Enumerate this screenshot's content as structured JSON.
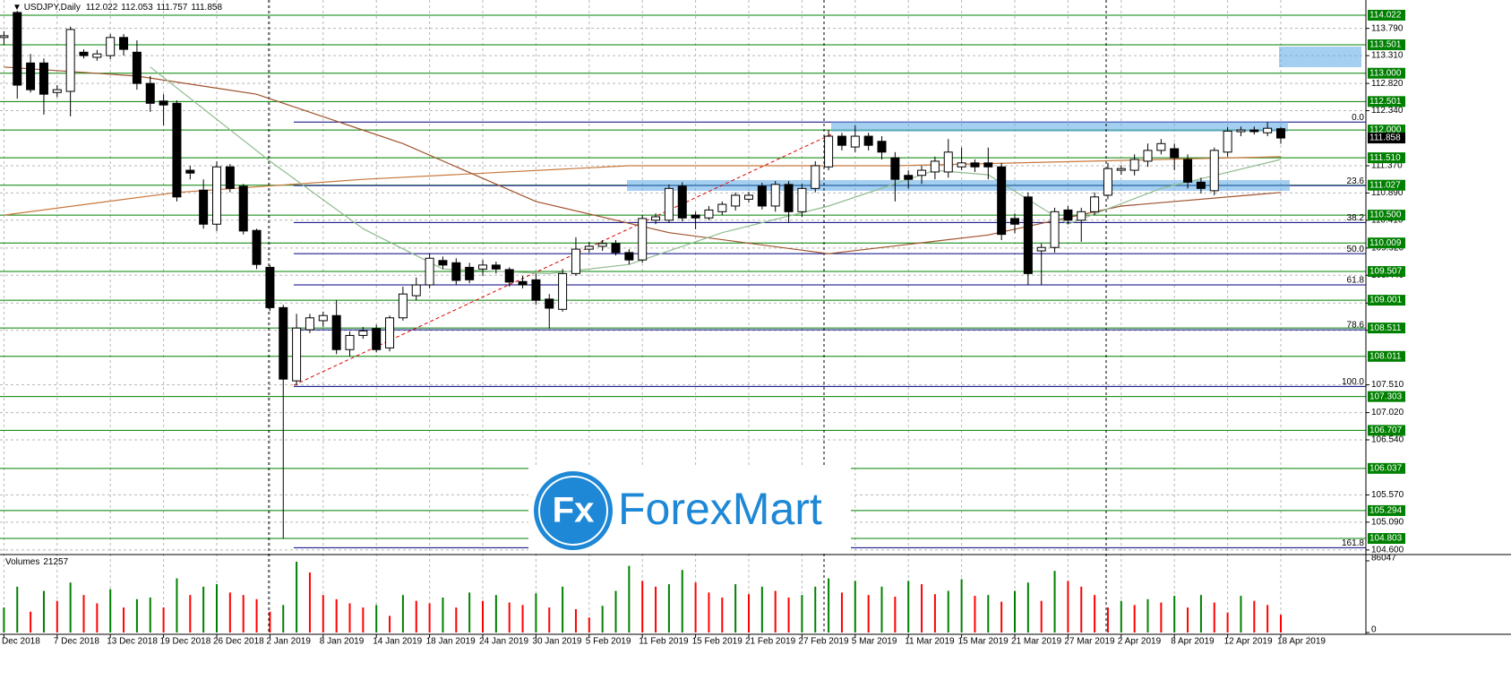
{
  "watermark": {
    "icon": "Fx",
    "text": "ForexMart"
  },
  "chart_data": [
    {
      "type": "candlestick",
      "title": "USDJPY,Daily",
      "categories": [
        "Dec 2018",
        null,
        null,
        null,
        "7 Dec 2018",
        null,
        null,
        null,
        "13 Dec 2018",
        null,
        null,
        null,
        "19 Dec 2018",
        null,
        null,
        null,
        "26 Dec 2018",
        null,
        null,
        null,
        "2 Jan 2019",
        null,
        null,
        null,
        "8 Jan 2019",
        null,
        null,
        null,
        "14 Jan 2019",
        null,
        null,
        null,
        "18 Jan 2019",
        null,
        null,
        null,
        "24 Jan 2019",
        null,
        null,
        null,
        "30 Jan 2019",
        null,
        null,
        null,
        "5 Feb 2019",
        null,
        null,
        null,
        "11 Feb 2019",
        null,
        null,
        null,
        "15 Feb 2019",
        null,
        null,
        null,
        "21 Feb 2019",
        null,
        null,
        null,
        "27 Feb 2019",
        null,
        null,
        null,
        "5 Mar 2019",
        null,
        null,
        null,
        "11 Mar 2019",
        null,
        null,
        null,
        "15 Mar 2019",
        null,
        null,
        null,
        "21 Mar 2019",
        null,
        null,
        null,
        "27 Mar 2019",
        null,
        null,
        null,
        "2 Apr 2019",
        null,
        null,
        null,
        "8 Apr 2019",
        null,
        null,
        null,
        "12 Apr 2019",
        null,
        null,
        null,
        "18 Apr 2019"
      ],
      "open": [
        113.63,
        114.07,
        113.18,
        113.18,
        112.66,
        112.68,
        113.37,
        113.28,
        113.31,
        113.63,
        113.37,
        112.82,
        112.51,
        112.47,
        111.29,
        110.94,
        110.34,
        111.35,
        111.01,
        110.23,
        109.58,
        108.87,
        107.58,
        108.48,
        108.64,
        108.73,
        108.13,
        108.38,
        108.5,
        108.16,
        108.69,
        109.08,
        109.27,
        109.7,
        109.66,
        109.58,
        109.55,
        109.62,
        109.54,
        109.33,
        109.36,
        109.02,
        108.84,
        109.47,
        109.9,
        109.95,
        110.0,
        109.84,
        109.71,
        110.41,
        110.41,
        111.01,
        110.5,
        110.45,
        110.56,
        110.66,
        110.78,
        111.01,
        110.66,
        111.04,
        110.56,
        110.97,
        111.35,
        111.89,
        111.7,
        111.89,
        111.8,
        111.51,
        111.2,
        111.2,
        111.26,
        111.26,
        111.35,
        111.42,
        111.42,
        111.35,
        110.44,
        110.82,
        109.87,
        109.93,
        110.59,
        110.41,
        110.56,
        110.85,
        111.29,
        111.29,
        111.45,
        111.64,
        111.67,
        111.48,
        111.08,
        110.93,
        111.61,
        111.97,
        112.0,
        111.95,
        112.022
      ],
      "high": [
        113.74,
        114.1,
        113.34,
        113.26,
        112.79,
        113.82,
        113.42,
        113.41,
        113.69,
        113.69,
        113.58,
        112.95,
        112.63,
        112.52,
        111.37,
        111.13,
        111.45,
        111.4,
        111.05,
        110.26,
        109.62,
        108.92,
        108.76,
        108.76,
        108.8,
        109.0,
        108.45,
        108.53,
        108.57,
        108.73,
        109.24,
        109.4,
        109.82,
        109.77,
        109.74,
        109.66,
        109.71,
        109.68,
        109.58,
        109.43,
        109.47,
        109.11,
        109.55,
        110.11,
        110.03,
        110.06,
        110.06,
        109.9,
        110.5,
        110.53,
        111.04,
        111.08,
        110.56,
        110.66,
        110.74,
        110.9,
        110.91,
        111.07,
        111.1,
        111.1,
        111.05,
        111.45,
        112.0,
        111.95,
        112.08,
        111.95,
        111.89,
        111.61,
        111.29,
        111.37,
        111.53,
        111.84,
        111.69,
        111.48,
        111.69,
        111.42,
        110.53,
        110.9,
        110.0,
        110.63,
        110.66,
        110.63,
        110.9,
        111.42,
        111.38,
        111.57,
        111.76,
        111.84,
        111.76,
        111.57,
        111.16,
        111.69,
        112.05,
        112.06,
        112.06,
        112.14,
        112.053
      ],
      "low": [
        113.5,
        112.55,
        112.66,
        112.27,
        112.58,
        112.24,
        113.26,
        113.22,
        113.25,
        113.31,
        112.71,
        112.32,
        112.08,
        110.74,
        111.13,
        110.26,
        110.22,
        110.9,
        110.16,
        109.55,
        108.81,
        104.8,
        107.5,
        108.42,
        108.53,
        108.05,
        108.01,
        108.32,
        108.08,
        108.1,
        108.64,
        109.0,
        109.21,
        109.55,
        109.27,
        109.3,
        109.43,
        109.47,
        109.24,
        109.21,
        108.92,
        108.5,
        108.8,
        109.43,
        109.84,
        109.87,
        109.79,
        109.63,
        109.66,
        110.34,
        110.36,
        110.39,
        110.25,
        110.41,
        110.5,
        110.58,
        110.72,
        110.6,
        110.56,
        110.37,
        110.47,
        110.9,
        111.29,
        111.64,
        111.61,
        111.64,
        111.48,
        110.74,
        110.97,
        111.05,
        111.13,
        111.16,
        111.29,
        111.26,
        111.13,
        110.06,
        110.18,
        109.27,
        109.27,
        109.84,
        110.34,
        110.03,
        110.5,
        110.78,
        111.21,
        111.2,
        111.35,
        111.57,
        111.29,
        110.97,
        110.88,
        110.85,
        111.53,
        111.89,
        111.92,
        111.89,
        111.757
      ],
      "close": [
        113.66,
        112.79,
        112.71,
        112.63,
        112.71,
        113.77,
        113.31,
        113.34,
        113.63,
        113.42,
        112.82,
        112.47,
        112.44,
        110.82,
        111.24,
        110.34,
        111.35,
        110.97,
        110.22,
        109.63,
        108.87,
        107.61,
        108.51,
        108.69,
        108.73,
        108.13,
        108.38,
        108.46,
        108.13,
        108.69,
        109.11,
        109.27,
        109.74,
        109.62,
        109.35,
        109.36,
        109.62,
        109.55,
        109.32,
        109.27,
        109.0,
        108.86,
        109.47,
        109.9,
        109.95,
        110.0,
        109.84,
        109.71,
        110.44,
        110.47,
        110.97,
        110.45,
        110.45,
        110.59,
        110.69,
        110.85,
        110.85,
        110.66,
        111.04,
        110.56,
        110.97,
        111.37,
        111.89,
        111.73,
        111.89,
        111.73,
        111.61,
        111.13,
        111.13,
        111.29,
        111.45,
        111.61,
        111.42,
        111.35,
        111.35,
        110.16,
        110.34,
        109.47,
        109.93,
        110.56,
        110.41,
        110.56,
        110.82,
        111.32,
        111.32,
        111.48,
        111.64,
        111.76,
        111.51,
        111.08,
        110.97,
        111.64,
        111.98,
        112.0,
        111.97,
        112.03,
        111.858
      ],
      "up_color": "#ffffff",
      "down_color": "#000000",
      "ylim": [
        104.535,
        114.29
      ],
      "yticks": [
        {
          "value": 113.79,
          "label": "113.790"
        },
        {
          "value": 113.31,
          "label": "113.310"
        },
        {
          "value": 112.82,
          "label": "112.820"
        },
        {
          "value": 112.34,
          "label": "112.340"
        },
        {
          "value": 111.37,
          "label": "111.370"
        },
        {
          "value": 110.89,
          "label": "110.890"
        },
        {
          "value": 110.41,
          "label": "110.410"
        },
        {
          "value": 109.92,
          "label": "109.920"
        },
        {
          "value": 109.44,
          "label": "109.440"
        },
        {
          "value": 108.95,
          "label": "108.950"
        },
        {
          "value": 108.47,
          "label": "108.470"
        },
        {
          "value": 107.51,
          "label": "107.510"
        },
        {
          "value": 107.02,
          "label": "107.020"
        },
        {
          "value": 106.54,
          "label": "106.540"
        },
        {
          "value": 105.57,
          "label": "105.570"
        },
        {
          "value": 105.09,
          "label": "105.090"
        },
        {
          "value": 104.6,
          "label": "104.600"
        }
      ],
      "levels": [
        {
          "value": 114.022,
          "label": "114.022"
        },
        {
          "value": 113.501,
          "label": "113.501"
        },
        {
          "value": 113.0,
          "label": "113.000"
        },
        {
          "value": 112.501,
          "label": "112.501"
        },
        {
          "value": 112.0,
          "label": "112.000"
        },
        {
          "value": 111.51,
          "label": "111.510"
        },
        {
          "value": 111.027,
          "label": "111.027"
        },
        {
          "value": 110.5,
          "label": "110.500"
        },
        {
          "value": 110.009,
          "label": "110.009"
        },
        {
          "value": 109.507,
          "label": "109.507"
        },
        {
          "value": 109.001,
          "label": "109.001"
        },
        {
          "value": 108.511,
          "label": "108.511"
        },
        {
          "value": 108.011,
          "label": "108.011"
        },
        {
          "value": 107.303,
          "label": "107.303"
        },
        {
          "value": 106.707,
          "label": "106.707"
        },
        {
          "value": 106.037,
          "label": "106.037"
        },
        {
          "value": 105.294,
          "label": "105.294"
        },
        {
          "value": 104.803,
          "label": "104.803"
        }
      ],
      "level_color": "#008000",
      "fib_levels": [
        {
          "label": "0.0",
          "price": 112.14
        },
        {
          "label": "23.6",
          "price": 111.02
        },
        {
          "label": "38.2",
          "price": 110.37
        },
        {
          "label": "50.0",
          "price": 109.82
        },
        {
          "label": "61.8",
          "price": 109.27
        },
        {
          "label": "78.6",
          "price": 108.48
        },
        {
          "label": "100.0",
          "price": 107.48
        },
        {
          "label": "161.8",
          "price": 104.64
        }
      ],
      "fib_color": "#000080",
      "grid": true,
      "series": [
        {
          "color": "#c8783c",
          "x": [
            0,
            13,
            27,
            47,
            67,
            96
          ],
          "values": [
            110.5,
            110.9,
            111.13,
            111.37,
            111.37,
            111.53
          ]
        },
        {
          "color": "#a0522d",
          "x": [
            0,
            10,
            19,
            30,
            40,
            50,
            62,
            74,
            84,
            96
          ],
          "values": [
            113.11,
            112.95,
            112.63,
            111.76,
            110.74,
            110.19,
            109.82,
            110.15,
            110.66,
            110.9
          ]
        },
        {
          "color": "#8fbc8f",
          "x": [
            11,
            20,
            27,
            33,
            41,
            47,
            54,
            62,
            70,
            74,
            80,
            87,
            96
          ],
          "values": [
            113.11,
            111.45,
            110.26,
            109.55,
            109.47,
            109.63,
            110.19,
            110.66,
            111.29,
            111.21,
            110.34,
            110.97,
            111.48
          ]
        }
      ]
    },
    {
      "type": "bar",
      "title": "Volumes",
      "values": [
        30000,
        55000,
        25000,
        50000,
        38000,
        60000,
        45000,
        35000,
        52000,
        30000,
        40000,
        42000,
        30000,
        65000,
        45000,
        55000,
        58000,
        48000,
        45000,
        40000,
        25000,
        33000,
        85000,
        72000,
        45000,
        40000,
        35000,
        30000,
        33000,
        20000,
        45000,
        38000,
        35000,
        42000,
        30000,
        48000,
        38000,
        45000,
        36000,
        33000,
        47000,
        30000,
        55000,
        28000,
        18000,
        32000,
        50000,
        80000,
        62000,
        55000,
        58000,
        75000,
        60000,
        48000,
        42000,
        58000,
        46000,
        55000,
        50000,
        42000,
        45000,
        55000,
        65000,
        48000,
        62000,
        45000,
        55000,
        43000,
        62000,
        58000,
        46000,
        50000,
        64000,
        44000,
        45000,
        37000,
        50000,
        60000,
        38000,
        74000,
        62000,
        55000,
        45000,
        30000,
        38000,
        33000,
        40000,
        36000,
        44000,
        30000,
        45000,
        36000,
        24000,
        44000,
        38000,
        33000,
        21257
      ],
      "up_color": "#008000",
      "down_color": "#ff0000",
      "ylim": [
        0,
        86047
      ],
      "yticks": [
        0,
        86047
      ]
    }
  ]
}
